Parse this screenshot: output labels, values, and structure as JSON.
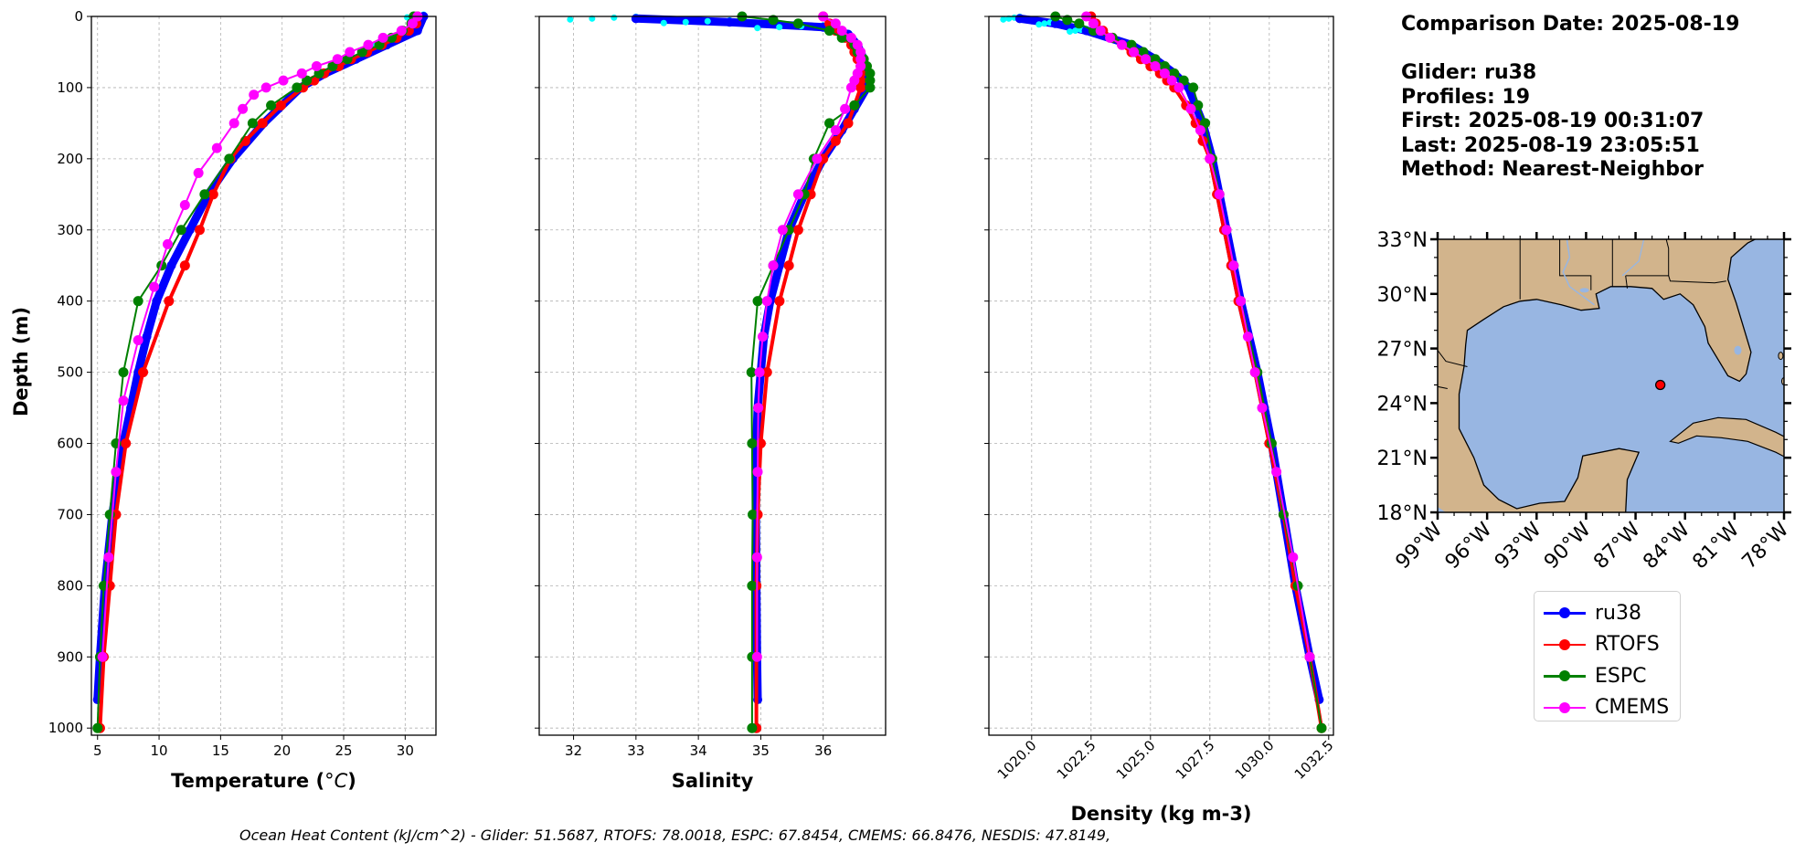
{
  "info": {
    "comparison_date": "Comparison Date: 2025-08-19",
    "glider": "Glider: ru38",
    "profiles": "Profiles: 19",
    "first": "First: 2025-08-19 00:31:07",
    "last": "Last: 2025-08-19 23:05:51",
    "method": "Method: Nearest-Neighbor"
  },
  "footer": "Ocean Heat Content (kJ/cm^2) - Glider: 51.5687,  RTOFS: 78.0018,  ESPC: 67.8454,  CMEMS: 66.8476,  NESDIS: 47.8149,",
  "legend": [
    {
      "label": "ru38",
      "color": "#0000ff"
    },
    {
      "label": "RTOFS",
      "color": "#ff0000"
    },
    {
      "label": "ESPC",
      "color": "#008000"
    },
    {
      "label": "CMEMS",
      "color": "#ff00ff"
    }
  ],
  "colors": {
    "ocean": "#98b6e2",
    "land": "#d2b48c",
    "glider_raw": "#00ffff",
    "marker": "#ff0000"
  },
  "map": {
    "lat_ticks": [
      "33°N",
      "30°N",
      "27°N",
      "24°N",
      "21°N",
      "18°N"
    ],
    "lat_values": [
      33,
      30,
      27,
      24,
      21,
      18
    ],
    "lon_ticks": [
      "99°W",
      "96°W",
      "93°W",
      "90°W",
      "87°W",
      "84°W",
      "81°W",
      "78°W"
    ],
    "lon_values": [
      -99,
      -96,
      -93,
      -90,
      -87,
      -84,
      -81,
      -78
    ],
    "glider_location": {
      "lon": -85.5,
      "lat": 25.0
    }
  },
  "chart_data": [
    {
      "type": "line",
      "xlabel": "Temperature (°C)",
      "ylabel": "Depth (m)",
      "xlim": [
        4.5,
        32.5
      ],
      "ylim": [
        1010,
        0
      ],
      "xticks": [
        5,
        10,
        15,
        20,
        25,
        30
      ],
      "yticks": [
        0,
        100,
        200,
        300,
        400,
        500,
        600,
        700,
        800,
        900,
        1000
      ],
      "grid": true,
      "series": [
        {
          "name": "ru38",
          "depth": [
            0,
            20,
            40,
            60,
            80,
            100,
            150,
            200,
            250,
            300,
            350,
            400,
            450,
            500,
            550,
            600,
            700,
            800,
            900,
            960
          ],
          "values": [
            31.5,
            31.0,
            28.5,
            26.0,
            23.5,
            21.5,
            18.5,
            16.0,
            14.0,
            12.5,
            11.0,
            9.8,
            9.0,
            8.3,
            7.7,
            7.1,
            6.2,
            5.6,
            5.2,
            5.0
          ]
        },
        {
          "name": "RTOFS",
          "depth": [
            0,
            10,
            20,
            30,
            40,
            50,
            60,
            70,
            80,
            90,
            100,
            125,
            150,
            175,
            200,
            250,
            300,
            350,
            400,
            500,
            600,
            700,
            800,
            900,
            1000
          ],
          "values": [
            31.0,
            30.9,
            30.3,
            29.3,
            28.1,
            26.9,
            25.6,
            24.6,
            23.4,
            22.6,
            21.7,
            19.9,
            18.4,
            17.0,
            15.8,
            14.4,
            13.3,
            12.1,
            10.8,
            8.7,
            7.3,
            6.5,
            6.0,
            5.5,
            5.2
          ]
        },
        {
          "name": "ESPC",
          "depth": [
            0,
            10,
            20,
            30,
            40,
            50,
            60,
            70,
            80,
            90,
            100,
            125,
            150,
            200,
            250,
            300,
            350,
            400,
            500,
            600,
            700,
            800,
            900,
            1000
          ],
          "values": [
            30.7,
            30.5,
            29.8,
            28.9,
            27.9,
            26.5,
            25.3,
            24.1,
            23.0,
            22.0,
            21.2,
            19.1,
            17.6,
            15.7,
            13.7,
            11.8,
            10.2,
            8.3,
            7.1,
            6.5,
            6.0,
            5.5,
            5.2,
            5.0
          ]
        },
        {
          "name": "CMEMS",
          "depth": [
            0,
            10,
            20,
            30,
            40,
            50,
            60,
            70,
            80,
            90,
            100,
            110,
            130,
            150,
            185,
            220,
            265,
            320,
            380,
            455,
            540,
            640,
            760,
            900
          ],
          "values": [
            31.0,
            30.6,
            29.7,
            28.2,
            27.0,
            25.5,
            24.5,
            22.8,
            21.6,
            20.1,
            18.7,
            17.7,
            16.8,
            16.1,
            14.7,
            13.2,
            12.1,
            10.7,
            9.6,
            8.3,
            7.1,
            6.5,
            5.9,
            5.4
          ]
        }
      ]
    },
    {
      "type": "line",
      "xlabel": "Salinity",
      "ylabel": "",
      "xlim": [
        31.45,
        37.0
      ],
      "ylim": [
        1010,
        0
      ],
      "xticks": [
        32,
        33,
        34,
        35,
        36
      ],
      "yticks": [
        0,
        100,
        200,
        300,
        400,
        500,
        600,
        700,
        800,
        900,
        1000
      ],
      "grid": true,
      "series": [
        {
          "name": "ru38",
          "depth": [
            3,
            8,
            15,
            25,
            40,
            60,
            80,
            100,
            130,
            160,
            200,
            250,
            300,
            350,
            400,
            450,
            500,
            550,
            600,
            700,
            800,
            900,
            960
          ],
          "values": [
            33.0,
            34.5,
            36.0,
            36.4,
            36.55,
            36.65,
            36.7,
            36.7,
            36.5,
            36.3,
            36.0,
            35.7,
            35.45,
            35.3,
            35.15,
            35.05,
            35.0,
            34.95,
            34.93,
            34.92,
            34.93,
            34.94,
            34.95
          ]
        },
        {
          "name": "RTOFS",
          "depth": [
            0,
            10,
            20,
            30,
            40,
            50,
            60,
            70,
            80,
            90,
            100,
            125,
            150,
            175,
            200,
            250,
            300,
            350,
            400,
            500,
            600,
            700,
            800,
            900,
            1000
          ],
          "values": [
            36.0,
            36.1,
            36.2,
            36.35,
            36.45,
            36.5,
            36.55,
            36.6,
            36.6,
            36.6,
            36.6,
            36.5,
            36.4,
            36.2,
            36.0,
            35.8,
            35.6,
            35.45,
            35.3,
            35.1,
            35.0,
            34.95,
            34.93,
            34.93,
            34.93
          ]
        },
        {
          "name": "ESPC",
          "depth": [
            0,
            5,
            10,
            20,
            30,
            40,
            50,
            60,
            70,
            80,
            90,
            100,
            125,
            150,
            200,
            250,
            300,
            350,
            400,
            500,
            600,
            700,
            800,
            900,
            1000
          ],
          "values": [
            34.7,
            35.2,
            35.6,
            36.1,
            36.3,
            36.5,
            36.55,
            36.65,
            36.7,
            36.75,
            36.75,
            36.75,
            36.5,
            36.1,
            35.85,
            35.7,
            35.45,
            35.2,
            34.95,
            34.85,
            34.86,
            34.87,
            34.86,
            34.86,
            34.86
          ]
        },
        {
          "name": "CMEMS",
          "depth": [
            0,
            10,
            20,
            30,
            40,
            50,
            60,
            70,
            80,
            90,
            100,
            130,
            160,
            200,
            250,
            300,
            350,
            400,
            450,
            500,
            550,
            640,
            760,
            900
          ],
          "values": [
            36.0,
            36.2,
            36.3,
            36.45,
            36.55,
            36.6,
            36.6,
            36.6,
            36.55,
            36.5,
            36.45,
            36.35,
            36.2,
            35.9,
            35.6,
            35.35,
            35.2,
            35.1,
            35.03,
            34.98,
            34.96,
            34.95,
            34.94,
            34.94
          ]
        }
      ]
    },
    {
      "type": "line",
      "xlabel": "Density (kg m-3)",
      "ylabel": "",
      "xlim": [
        1018.2,
        1032.7
      ],
      "ylim": [
        1010,
        0
      ],
      "xticks": [
        1020.0,
        1022.5,
        1025.0,
        1027.5,
        1030.0,
        1032.5
      ],
      "yticks": [
        0,
        100,
        200,
        300,
        400,
        500,
        600,
        700,
        800,
        900,
        1000
      ],
      "grid": true,
      "series": [
        {
          "name": "ru38",
          "depth": [
            3,
            10,
            20,
            40,
            60,
            80,
            100,
            150,
            200,
            250,
            300,
            400,
            500,
            600,
            700,
            800,
            900,
            960
          ],
          "values": [
            1019.5,
            1021.0,
            1022.3,
            1024.2,
            1025.2,
            1026.0,
            1026.6,
            1027.2,
            1027.6,
            1027.9,
            1028.2,
            1028.8,
            1029.5,
            1030.1,
            1030.6,
            1031.1,
            1031.7,
            1032.1
          ]
        },
        {
          "name": "RTOFS",
          "depth": [
            0,
            10,
            20,
            30,
            40,
            50,
            60,
            70,
            80,
            90,
            100,
            125,
            150,
            175,
            200,
            250,
            300,
            350,
            400,
            500,
            600,
            700,
            800,
            900,
            1000
          ],
          "values": [
            1022.5,
            1022.7,
            1023.0,
            1023.4,
            1023.8,
            1024.2,
            1024.6,
            1025.0,
            1025.4,
            1025.7,
            1026.0,
            1026.5,
            1026.9,
            1027.2,
            1027.5,
            1027.8,
            1028.1,
            1028.4,
            1028.7,
            1029.4,
            1030.0,
            1030.6,
            1031.1,
            1031.7,
            1032.2
          ]
        },
        {
          "name": "ESPC",
          "depth": [
            0,
            5,
            10,
            20,
            30,
            40,
            50,
            60,
            70,
            80,
            90,
            100,
            125,
            150,
            200,
            250,
            300,
            350,
            400,
            500,
            600,
            700,
            800,
            900,
            1000
          ],
          "values": [
            1021.0,
            1021.5,
            1022.0,
            1022.6,
            1023.4,
            1024.2,
            1024.7,
            1025.2,
            1025.6,
            1026.0,
            1026.4,
            1026.8,
            1027.0,
            1027.3,
            1027.6,
            1027.9,
            1028.2,
            1028.5,
            1028.8,
            1029.5,
            1030.1,
            1030.6,
            1031.2,
            1031.7,
            1032.2
          ]
        },
        {
          "name": "CMEMS",
          "depth": [
            0,
            10,
            20,
            30,
            40,
            50,
            60,
            70,
            80,
            90,
            100,
            130,
            160,
            200,
            250,
            300,
            350,
            400,
            450,
            500,
            550,
            640,
            760,
            900
          ],
          "values": [
            1022.3,
            1022.6,
            1022.9,
            1023.3,
            1023.8,
            1024.3,
            1024.8,
            1025.2,
            1025.6,
            1025.9,
            1026.2,
            1026.7,
            1027.1,
            1027.5,
            1027.9,
            1028.2,
            1028.5,
            1028.8,
            1029.1,
            1029.4,
            1029.7,
            1030.3,
            1031.0,
            1031.7
          ]
        }
      ]
    }
  ]
}
